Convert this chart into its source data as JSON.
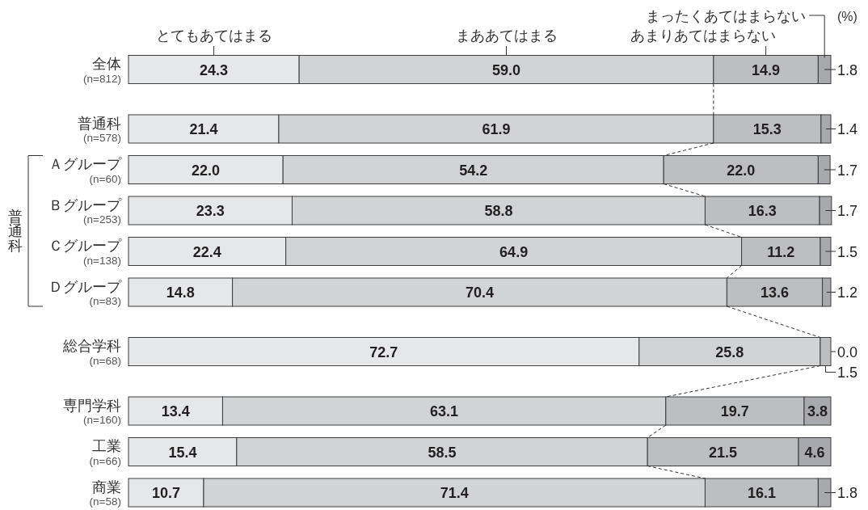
{
  "chart_data": {
    "type": "bar",
    "orientation": "horizontal",
    "stacked": true,
    "categories": [
      "全体\n(n=812)",
      "普通科\n(n=578)",
      "Ａグループ\n(n=60)",
      "Ｂグループ\n(n=253)",
      "Ｃグループ\n(n=138)",
      "Ｄグループ\n(n=83)",
      "総合学科\n(n=68)",
      "専門学科\n(n=160)",
      "工業\n(n=66)",
      "商業\n(n=58)"
    ],
    "series": [
      {
        "name": "とてもあてはまる",
        "color": "#e6e7e8",
        "values": [
          24.3,
          21.4,
          22.0,
          23.3,
          22.4,
          14.8,
          72.7,
          13.4,
          15.4,
          10.7
        ],
        "value_labels": [
          "24.3",
          "21.4",
          "22.0",
          "23.3",
          "22.4",
          "14.8",
          "72.7",
          "13.4",
          "15.4",
          "10.7"
        ]
      },
      {
        "name": "まああてはまる",
        "color": "#d1d3d4",
        "values": [
          59.0,
          61.9,
          54.2,
          58.8,
          64.9,
          70.4,
          25.8,
          63.1,
          58.5,
          71.4
        ],
        "value_labels": [
          "59.0",
          "61.9",
          "54.2",
          "58.8",
          "64.9",
          "70.4",
          "25.8",
          "63.1",
          "58.5",
          "71.4"
        ]
      },
      {
        "name": "あまりあてはまらない",
        "color": "#bcbec0",
        "values": [
          14.9,
          15.3,
          22.0,
          16.3,
          11.2,
          13.6,
          1.5,
          19.7,
          21.5,
          16.1
        ],
        "value_labels": [
          "14.9",
          "15.3",
          "22.0",
          "16.3",
          "11.2",
          "13.6",
          "1.5",
          "19.7",
          "21.5",
          "16.1"
        ]
      },
      {
        "name": "まったくあてはまらない",
        "color": "#a7a9ac",
        "values": [
          1.8,
          1.4,
          1.7,
          1.7,
          1.5,
          1.2,
          0.0,
          3.8,
          4.6,
          1.8
        ],
        "value_labels": [
          "1.8",
          "1.4",
          "1.7",
          "1.7",
          "1.5",
          "1.2",
          "0.0",
          "3.8",
          "4.6",
          "1.8"
        ]
      }
    ],
    "xlim": [
      0,
      100
    ],
    "legend": "top",
    "tick_labels": "y",
    "annotations": [
      "(%)",
      "普通科"
    ]
  }
}
